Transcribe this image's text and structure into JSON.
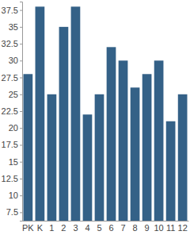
{
  "chart_data": {
    "type": "bar",
    "categories": [
      "PK",
      "K",
      "1",
      "2",
      "3",
      "4",
      "5",
      "6",
      "7",
      "8",
      "9",
      "10",
      "11",
      "12"
    ],
    "values": [
      28,
      38,
      25,
      35,
      38,
      22,
      25,
      32,
      30,
      26,
      28,
      30,
      21,
      25
    ],
    "color": "#346187",
    "ylim": [
      6.25,
      38.75
    ],
    "yticks": [
      7.5,
      10,
      12.5,
      15,
      17.5,
      20,
      22.5,
      25,
      27.5,
      30,
      32.5,
      35,
      37.5
    ],
    "grid": false
  }
}
